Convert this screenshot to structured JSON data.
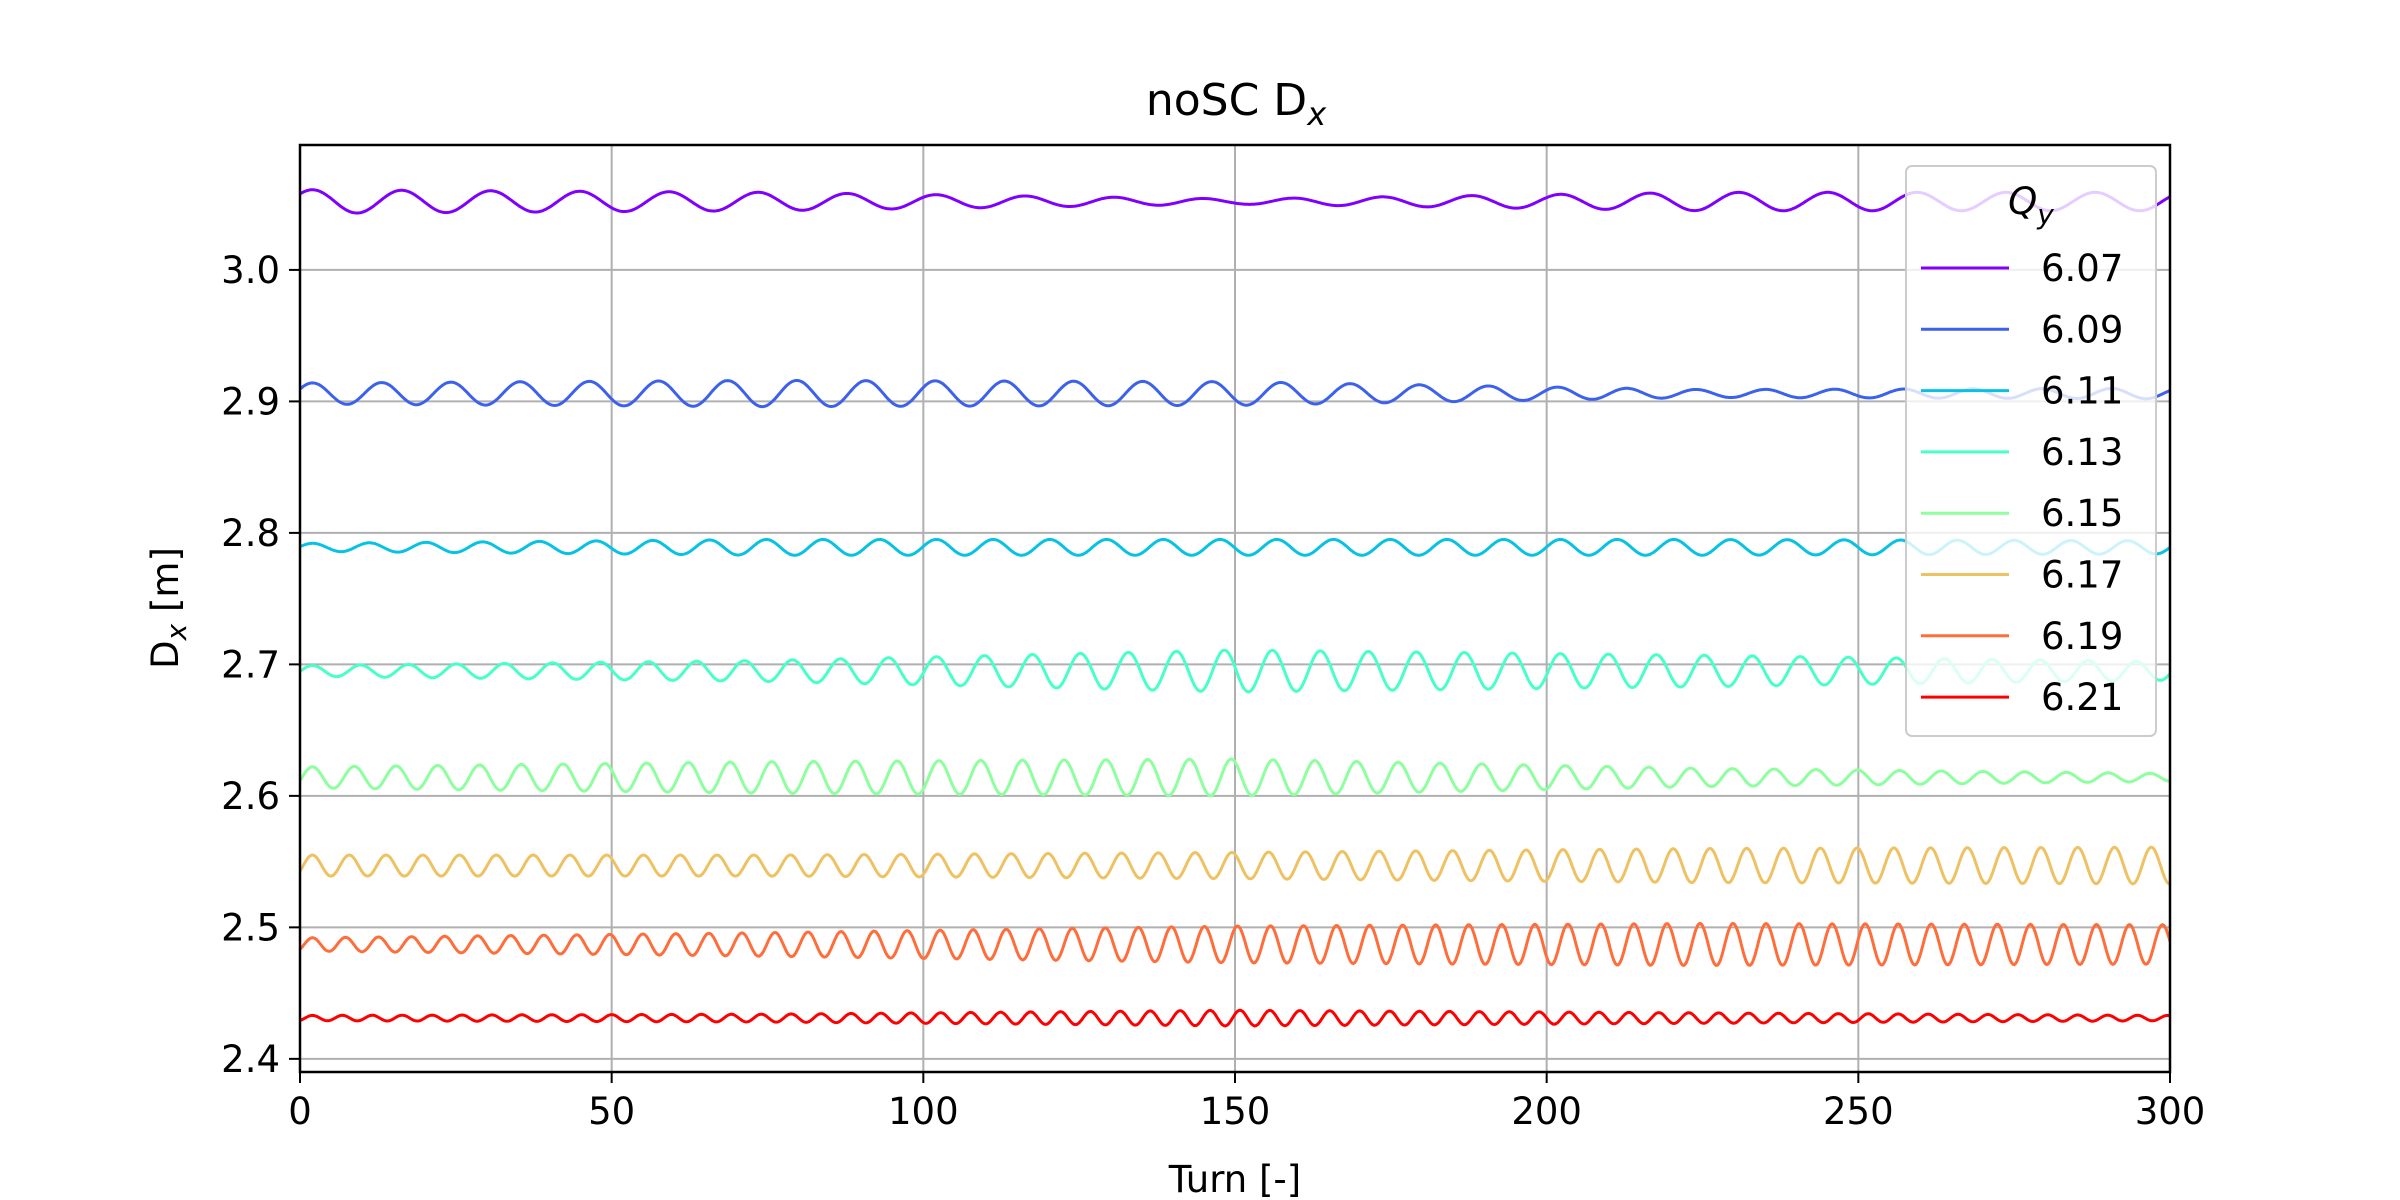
{
  "chart_data": {
    "type": "line",
    "title": "noSC D",
    "title_sub": "x",
    "xlabel": "Turn [-]",
    "ylabel": "D",
    "ylabel_sub": "x",
    "ylabel_suffix": " [m]",
    "xlim": [
      0,
      300
    ],
    "ylim": [
      2.39,
      3.095
    ],
    "xticks": [
      "0",
      "50",
      "100",
      "150",
      "200",
      "250",
      "300"
    ],
    "yticks": [
      "2.4",
      "2.5",
      "2.6",
      "2.7",
      "2.8",
      "2.9",
      "3.0"
    ],
    "grid": true,
    "legend": {
      "placement": "top-right",
      "title": "Q",
      "title_sub": "y"
    },
    "series": [
      {
        "name": "6.07",
        "color": "#8000ff",
        "mean": 3.052,
        "period": 14.3,
        "amp": [
          0.009,
          0.007,
          0.002,
          0.007,
          0.007
        ]
      },
      {
        "name": "6.09",
        "color": "#3c61ec",
        "mean": 2.906,
        "period": 11.1,
        "amp": [
          0.008,
          0.01,
          0.009,
          0.003,
          0.004
        ]
      },
      {
        "name": "6.11",
        "color": "#07c2e3",
        "mean": 2.789,
        "period": 9.1,
        "amp": [
          0.003,
          0.006,
          0.006,
          0.006,
          0.005
        ]
      },
      {
        "name": "6.13",
        "color": "#47ffc9",
        "mean": 2.695,
        "period": 7.7,
        "amp": [
          0.004,
          0.008,
          0.016,
          0.012,
          0.007
        ]
      },
      {
        "name": "6.15",
        "color": "#8dff9e",
        "mean": 2.614,
        "period": 6.7,
        "amp": [
          0.008,
          0.012,
          0.014,
          0.007,
          0.003
        ]
      },
      {
        "name": "6.17",
        "color": "#eec262",
        "mean": 2.547,
        "period": 5.9,
        "amp": [
          0.008,
          0.008,
          0.01,
          0.013,
          0.014
        ]
      },
      {
        "name": "6.19",
        "color": "#ff6d3a",
        "mean": 2.487,
        "period": 5.3,
        "amp": [
          0.005,
          0.009,
          0.014,
          0.016,
          0.015
        ]
      },
      {
        "name": "6.21",
        "color": "#ff0000",
        "mean": 2.431,
        "period": 4.8,
        "amp": [
          0.002,
          0.003,
          0.006,
          0.004,
          0.002
        ]
      }
    ]
  }
}
